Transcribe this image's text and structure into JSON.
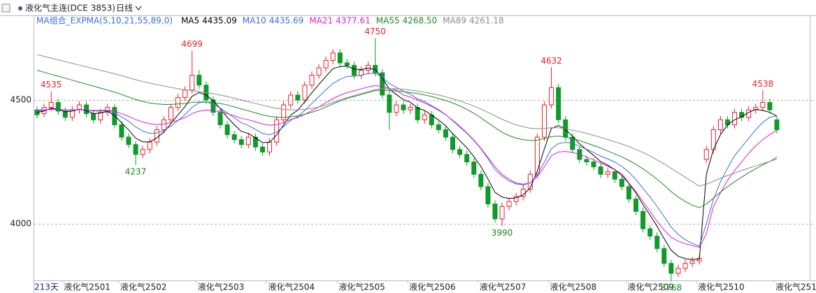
{
  "chart_data": {
    "type": "candlestick",
    "title": "液化气主连(DCE 3853)",
    "period": "日线",
    "indicator": "MA组合_EXPMA(5,10,21,55,89,0)",
    "bar_count_label": "213天",
    "ylim": [
      3760,
      4805
    ],
    "yticks": [
      4000,
      4500
    ],
    "grid": true,
    "up_color": "#e8222a",
    "down_color": "#0f9a2a",
    "high_label_color": "#e8222a",
    "low_label_color": "#1a8a1a",
    "marked_highs": [
      2,
      22,
      48,
      73,
      103
    ],
    "marked_lows": [
      14,
      66,
      90
    ],
    "categories": [
      null,
      null,
      null,
      null,
      "液化气2501",
      null,
      null,
      null,
      null,
      null,
      null,
      null,
      "液化气2502",
      null,
      null,
      null,
      null,
      null,
      null,
      null,
      null,
      null,
      null,
      "液化气2503",
      null,
      null,
      null,
      null,
      null,
      null,
      null,
      null,
      null,
      "液化气2504",
      null,
      null,
      null,
      null,
      null,
      null,
      null,
      null,
      null,
      "液化气2505",
      null,
      null,
      null,
      null,
      null,
      null,
      null,
      null,
      null,
      "液化气2506",
      null,
      null,
      null,
      null,
      null,
      null,
      null,
      null,
      null,
      "液化气2507",
      null,
      null,
      null,
      null,
      null,
      null,
      null,
      null,
      null,
      "液化气2508",
      null,
      null,
      null,
      null,
      null,
      null,
      null,
      null,
      null,
      null,
      "液化气2509",
      null,
      null,
      null,
      null,
      null,
      null,
      null,
      null,
      null,
      "液化气2510",
      null,
      null,
      null,
      null,
      null,
      null,
      null,
      null,
      null,
      null,
      "液化气251"
    ],
    "open": [
      4460,
      4445,
      4470,
      4490,
      4455,
      4430,
      4460,
      4480,
      4445,
      4420,
      4450,
      4470,
      4400,
      4350,
      4320,
      4280,
      4300,
      4330,
      4380,
      4420,
      4470,
      4510,
      4540,
      4600,
      4560,
      4500,
      4450,
      4400,
      4360,
      4340,
      4320,
      4350,
      4310,
      4290,
      4330,
      4420,
      4480,
      4520,
      4500,
      4560,
      4600,
      4630,
      4660,
      4690,
      4650,
      4640,
      4600,
      4620,
      4640,
      4610,
      4520,
      4450,
      4480,
      4460,
      4470,
      4420,
      4440,
      4400,
      4380,
      4350,
      4300,
      4280,
      4250,
      4200,
      4150,
      4080,
      4020,
      4070,
      4090,
      4110,
      4140,
      4200,
      4350,
      4480,
      4550,
      4420,
      4350,
      4300,
      4260,
      4250,
      4230,
      4200,
      4210,
      4180,
      4150,
      4100,
      4050,
      3980,
      3950,
      3900,
      3840,
      3800,
      3820,
      3840,
      3850,
      4260,
      4300,
      4380,
      4420,
      4400,
      4450,
      4430,
      4460,
      4470,
      4490,
      4420
    ],
    "high": [
      4475,
      4485,
      4535,
      4505,
      4470,
      4475,
      4495,
      4495,
      4460,
      4465,
      4485,
      4485,
      4415,
      4365,
      4335,
      4315,
      4345,
      4395,
      4435,
      4485,
      4525,
      4555,
      4699,
      4620,
      4575,
      4515,
      4465,
      4415,
      4375,
      4355,
      4365,
      4365,
      4325,
      4345,
      4435,
      4495,
      4535,
      4535,
      4575,
      4615,
      4645,
      4675,
      4705,
      4705,
      4665,
      4655,
      4635,
      4655,
      4750,
      4625,
      4535,
      4495,
      4495,
      4485,
      4485,
      4455,
      4455,
      4415,
      4395,
      4365,
      4315,
      4295,
      4265,
      4215,
      4165,
      4095,
      4085,
      4105,
      4125,
      4155,
      4215,
      4365,
      4495,
      4632,
      4565,
      4435,
      4365,
      4315,
      4275,
      4265,
      4245,
      4225,
      4225,
      4195,
      4165,
      4115,
      4065,
      3995,
      3965,
      3915,
      3855,
      3835,
      3855,
      3865,
      3875,
      4315,
      4395,
      4435,
      4435,
      4465,
      4465,
      4475,
      4485,
      4538,
      4505,
      4435
    ],
    "low": [
      4425,
      4430,
      4455,
      4440,
      4415,
      4415,
      4445,
      4430,
      4405,
      4405,
      4435,
      4385,
      4335,
      4305,
      4237,
      4265,
      4285,
      4315,
      4365,
      4405,
      4455,
      4495,
      4525,
      4545,
      4485,
      4435,
      4385,
      4345,
      4325,
      4305,
      4305,
      4295,
      4275,
      4275,
      4315,
      4405,
      4465,
      4485,
      4485,
      4545,
      4585,
      4615,
      4645,
      4635,
      4625,
      4585,
      4585,
      4605,
      4595,
      4505,
      4380,
      4435,
      4445,
      4445,
      4405,
      4405,
      4385,
      4365,
      4335,
      4285,
      4265,
      4235,
      4185,
      4135,
      4065,
      4005,
      3990,
      4055,
      4075,
      4095,
      4125,
      4185,
      4335,
      4465,
      4405,
      4335,
      4285,
      4245,
      4235,
      4215,
      4185,
      4185,
      4165,
      4135,
      4085,
      4035,
      3965,
      3935,
      3885,
      3825,
      3768,
      3785,
      3805,
      3825,
      3835,
      4245,
      4285,
      4365,
      4385,
      4385,
      4415,
      4415,
      4445,
      4455,
      4445,
      4365
    ],
    "close": [
      4440,
      4470,
      4490,
      4455,
      4430,
      4460,
      4480,
      4445,
      4420,
      4450,
      4470,
      4400,
      4350,
      4320,
      4280,
      4300,
      4330,
      4380,
      4420,
      4470,
      4510,
      4540,
      4600,
      4560,
      4500,
      4450,
      4400,
      4360,
      4340,
      4320,
      4350,
      4310,
      4290,
      4330,
      4420,
      4480,
      4520,
      4500,
      4560,
      4600,
      4630,
      4660,
      4690,
      4650,
      4640,
      4600,
      4620,
      4640,
      4610,
      4520,
      4450,
      4480,
      4460,
      4470,
      4420,
      4440,
      4400,
      4380,
      4350,
      4300,
      4280,
      4250,
      4200,
      4150,
      4080,
      4020,
      4070,
      4090,
      4110,
      4140,
      4200,
      4350,
      4480,
      4550,
      4420,
      4350,
      4300,
      4260,
      4250,
      4230,
      4200,
      4210,
      4180,
      4150,
      4100,
      4050,
      3980,
      3950,
      3900,
      3840,
      3800,
      3820,
      3840,
      3850,
      3860,
      4300,
      4380,
      4420,
      4400,
      4450,
      4430,
      4460,
      4470,
      4490,
      4460,
      4380
    ],
    "series": [
      {
        "name": "MA5",
        "color": "#000000",
        "values": [
          4450,
          4455,
          4467,
          4463,
          4452,
          4455,
          4463,
          4457,
          4445,
          4447,
          4455,
          4437,
          4408,
          4379,
          4346,
          4331,
          4331,
          4347,
          4371,
          4404,
          4440,
          4473,
          4515,
          4530,
          4520,
          4497,
          4465,
          4430,
          4400,
          4373,
          4365,
          4347,
          4328,
          4329,
          4359,
          4399,
          4439,
          4459,
          4493,
          4529,
          4563,
          4595,
          4627,
          4635,
          4637,
          4625,
          4623,
          4629,
          4623,
          4589,
          4543,
          4522,
          4501,
          4491,
          4467,
          4458,
          4439,
          4419,
          4396,
          4364,
          4336,
          4307,
          4271,
          4231,
          4181,
          4127,
          4108,
          4102,
          4105,
          4117,
          4145,
          4213,
          4302,
          4385,
          4397,
          4381,
          4354,
          4323,
          4299,
          4276,
          4251,
          4237,
          4218,
          4195,
          4163,
          4125,
          4077,
          4035,
          3990,
          3940,
          3893,
          3869,
          3859,
          3856,
          3857,
          4200,
          4300,
          4360,
          4400,
          4420,
          4432,
          4450,
          4462,
          4458,
          4450,
          4435.09
        ]
      },
      {
        "name": "MA10",
        "color": "#3a6fd8",
        "values": [
          4455,
          4458,
          4463,
          4463,
          4459,
          4459,
          4461,
          4460,
          4456,
          4455,
          4457,
          4448,
          4432,
          4414,
          4391,
          4375,
          4365,
          4367,
          4377,
          4394,
          4417,
          4441,
          4470,
          4489,
          4492,
          4484,
          4467,
          4448,
          4428,
          4408,
          4397,
          4381,
          4365,
          4359,
          4371,
          4392,
          4418,
          4433,
          4458,
          4486,
          4514,
          4541,
          4567,
          4583,
          4595,
          4596,
          4600,
          4607,
          4608,
          4592,
          4566,
          4551,
          4535,
          4523,
          4505,
          4494,
          4477,
          4461,
          4441,
          4416,
          4391,
          4366,
          4336,
          4303,
          4263,
          4219,
          4192,
          4173,
          4161,
          4157,
          4165,
          4198,
          4249,
          4303,
          4324,
          4329,
          4325,
          4313,
          4301,
          4288,
          4273,
          4262,
          4249,
          4232,
          4208,
          4179,
          4143,
          4108,
          4070,
          4029,
          3987,
          3957,
          3936,
          3920,
          3910,
          4000,
          4100,
          4170,
          4225,
          4275,
          4310,
          4345,
          4380,
          4410,
          4430,
          4435.69
        ]
      },
      {
        "name": "MA21",
        "color": "#e020d0",
        "values": [
          4460,
          4460,
          4462,
          4462,
          4460,
          4460,
          4461,
          4460,
          4458,
          4458,
          4459,
          4454,
          4445,
          4434,
          4421,
          4411,
          4404,
          4401,
          4403,
          4409,
          4418,
          4429,
          4445,
          4455,
          4459,
          4458,
          4453,
          4445,
          4436,
          4426,
          4420,
          4412,
          4403,
          4398,
          4400,
          4409,
          4421,
          4429,
          4442,
          4457,
          4472,
          4489,
          4506,
          4519,
          4530,
          4537,
          4545,
          4553,
          4558,
          4555,
          4546,
          4540,
          4520,
          4512,
          4500,
          4488,
          4474,
          4458,
          4440,
          4418,
          4394,
          4368,
          4338,
          4305,
          4268,
          4230,
          4200,
          4180,
          4165,
          4160,
          4165,
          4190,
          4230,
          4275,
          4290,
          4292,
          4288,
          4280,
          4270,
          4258,
          4245,
          4232,
          4218,
          4203,
          4165,
          4130,
          4090,
          4050,
          4010,
          3975,
          3945,
          3930,
          3920,
          3912,
          3905,
          3960,
          4070,
          4125,
          4175,
          4215,
          4250,
          4285,
          4315,
          4340,
          4360,
          4377.61
        ]
      },
      {
        "name": "MA55",
        "color": "#1f8a1f",
        "value_labels": {
          "105": "4268.50"
        },
        "values": [
          4620,
          4612,
          4604,
          4596,
          4588,
          4580,
          4572,
          4564,
          4556,
          4548,
          4540,
          4532,
          4522,
          4512,
          4502,
          4494,
          4488,
          4484,
          4482,
          4482,
          4484,
          4486,
          4490,
          4492,
          4492,
          4490,
          4486,
          4480,
          4472,
          4464,
          4456,
          4448,
          4440,
          4434,
          4430,
          4430,
          4432,
          4436,
          4442,
          4450,
          4460,
          4472,
          4484,
          4496,
          4506,
          4514,
          4522,
          4530,
          4538,
          4540,
          4538,
          4536,
          4534,
          4530,
          4526,
          4520,
          4514,
          4506,
          4498,
          4488,
          4476,
          4462,
          4446,
          4428,
          4408,
          4388,
          4370,
          4356,
          4346,
          4340,
          4336,
          4338,
          4344,
          4352,
          4354,
          4350,
          4344,
          4336,
          4326,
          4316,
          4306,
          4294,
          4282,
          4270,
          4256,
          4240,
          4222,
          4202,
          4180,
          4156,
          4130,
          4108,
          4090,
          4075,
          4065,
          4080,
          4104,
          4128,
          4150,
          4170,
          4188,
          4206,
          4222,
          4238,
          4252,
          4268.5
        ]
      },
      {
        "name": "MA89",
        "color": "#8c8c8c",
        "values": [
          4683,
          4676,
          4669,
          4662,
          4655,
          4648,
          4641,
          4634,
          4627,
          4620,
          4613,
          4606,
          4598,
          4590,
          4582,
          4575,
          4568,
          4562,
          4556,
          4551,
          4546,
          4541,
          4538,
          4534,
          4530,
          4525,
          4520,
          4514,
          4507,
          4500,
          4493,
          4486,
          4479,
          4472,
          4466,
          4462,
          4460,
          4460,
          4462,
          4466,
          4472,
          4480,
          4490,
          4500,
          4510,
          4518,
          4526,
          4534,
          4542,
          4546,
          4546,
          4545,
          4543,
          4540,
          4536,
          4531,
          4526,
          4520,
          4513,
          4505,
          4496,
          4486,
          4475,
          4463,
          4450,
          4436,
          4422,
          4410,
          4400,
          4392,
          4386,
          4384,
          4385,
          4388,
          4388,
          4384,
          4378,
          4372,
          4365,
          4357,
          4349,
          4340,
          4331,
          4322,
          4312,
          4300,
          4288,
          4274,
          4258,
          4242,
          4224,
          4206,
          4188,
          4170,
          4152,
          4160,
          4172,
          4184,
          4195,
          4205,
          4215,
          4225,
          4234,
          4243,
          4252,
          4261.18
        ]
      }
    ]
  }
}
